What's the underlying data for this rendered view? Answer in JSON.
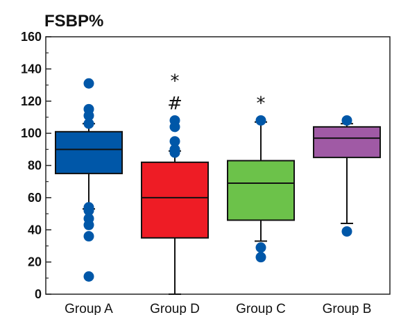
{
  "chart_data": {
    "type": "box",
    "title": "",
    "ylabel": "FSBP%",
    "xlabel": "",
    "ylim": [
      0,
      160
    ],
    "yticks": [
      0,
      20,
      40,
      60,
      80,
      100,
      120,
      140,
      160
    ],
    "grid": false,
    "categories": [
      "Group A",
      "Group D",
      "Group C",
      "Group B"
    ],
    "boxes": [
      {
        "category": "Group A",
        "color": "#0057A8",
        "q1": 75,
        "median": 90,
        "q3": 101,
        "whisker_low": 53,
        "whisker_high": 106,
        "outliers": [
          131,
          115,
          111,
          106,
          54,
          52,
          47,
          43,
          36,
          11
        ],
        "annotations": []
      },
      {
        "category": "Group D",
        "color": "#EE1C25",
        "q1": 35,
        "median": 60,
        "q3": 82,
        "whisker_low": 0,
        "whisker_high": 89,
        "outliers": [
          108,
          104,
          95,
          90,
          88
        ],
        "annotations": [
          "#",
          "*"
        ]
      },
      {
        "category": "Group C",
        "color": "#6CC24A",
        "q1": 46,
        "median": 69,
        "q3": 83,
        "whisker_low": 33,
        "whisker_high": 107,
        "outliers": [
          108,
          29,
          23
        ],
        "annotations": [
          "*"
        ]
      },
      {
        "category": "Group B",
        "color": "#A05AA5",
        "q1": 85,
        "median": 97,
        "q3": 104,
        "whisker_low": 44,
        "whisker_high": 106,
        "outliers": [
          108,
          39
        ],
        "annotations": []
      }
    ]
  }
}
